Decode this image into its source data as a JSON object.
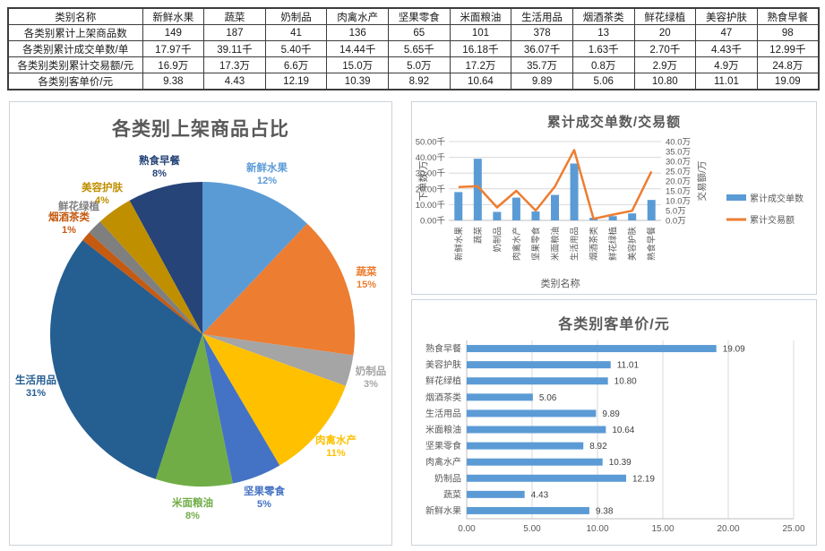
{
  "colors": {
    "grid": "#D9D9D9",
    "axis": "#BFBFBF",
    "tick_text": "#595959",
    "value_text": "#404040",
    "bar_blue": "#5B9BD5",
    "line_orange": "#ED7D31"
  },
  "table": {
    "header": [
      "类别名称",
      "新鲜水果",
      "蔬菜",
      "奶制品",
      "肉禽水产",
      "坚果零食",
      "米面粮油",
      "生活用品",
      "烟酒茶类",
      "鲜花绿植",
      "美容护肤",
      "熟食早餐"
    ],
    "rows": [
      {
        "label": "各类别累计上架商品数",
        "values": [
          "149",
          "187",
          "41",
          "136",
          "65",
          "101",
          "378",
          "13",
          "20",
          "47",
          "98"
        ]
      },
      {
        "label": "各类别累计成交单数/单",
        "values": [
          "17.97千",
          "39.11千",
          "5.40千",
          "14.44千",
          "5.65千",
          "16.18千",
          "36.07千",
          "1.63千",
          "2.70千",
          "4.43千",
          "12.99千"
        ]
      },
      {
        "label": "各类别类别累计交易额/元",
        "values": [
          "16.9万",
          "17.3万",
          "6.6万",
          "15.0万",
          "5.0万",
          "17.2万",
          "35.7万",
          "0.8万",
          "2.9万",
          "4.9万",
          "24.8万"
        ]
      },
      {
        "label": "各类别客单价/元",
        "values": [
          "9.38",
          "4.43",
          "12.19",
          "10.39",
          "8.92",
          "10.64",
          "9.89",
          "5.06",
          "10.80",
          "11.01",
          "19.09"
        ]
      }
    ]
  },
  "chart_data": [
    {
      "type": "pie",
      "title": "各类别上架商品占比",
      "categories": [
        "新鲜水果",
        "蔬菜",
        "奶制品",
        "肉禽水产",
        "坚果零食",
        "米面粮油",
        "生活用品",
        "烟酒茶类",
        "鲜花绿植",
        "美容护肤",
        "熟食早餐"
      ],
      "values": [
        149,
        187,
        41,
        136,
        65,
        101,
        378,
        13,
        20,
        47,
        98
      ],
      "pct_labels": [
        "12%",
        "15%",
        "3%",
        "11%",
        "5%",
        "8%",
        "31%",
        "1%",
        "",
        "4%",
        "8%"
      ],
      "slice_colors": [
        "#5B9BD5",
        "#ED7D31",
        "#A5A5A5",
        "#FFC000",
        "#4472C4",
        "#70AD47",
        "#255E91",
        "#C55A11",
        "#7F7F7F",
        "#BF8F00",
        "#264478"
      ],
      "legend_position": "none"
    },
    {
      "type": "combo-bar-line",
      "title": "累计成交单数/交易额",
      "categories": [
        "新鲜水果",
        "蔬菜",
        "奶制品",
        "肉禽水产",
        "坚果零食",
        "米面粮油",
        "生活用品",
        "烟酒茶类",
        "鲜花绿植",
        "美容护肤",
        "熟食早餐"
      ],
      "series": [
        {
          "name": "累计成交单数",
          "type": "bar",
          "color": "#5B9BD5",
          "axis": "left",
          "values": [
            17.97,
            39.11,
            5.4,
            14.44,
            5.65,
            16.18,
            36.07,
            1.63,
            2.7,
            4.43,
            12.99
          ]
        },
        {
          "name": "累计交易额",
          "type": "line",
          "color": "#ED7D31",
          "axis": "right",
          "values": [
            16.9,
            17.3,
            6.6,
            15.0,
            5.0,
            17.2,
            35.7,
            0.8,
            2.9,
            4.9,
            24.8
          ]
        }
      ],
      "y_left": {
        "title": "下单数/万",
        "ticks": [
          "0.00千",
          "10.00千",
          "20.00千",
          "30.00千",
          "40.00千",
          "50.00千"
        ],
        "max": 50
      },
      "y_right": {
        "title": "交易额/万",
        "ticks": [
          "0.0万",
          "5.0万",
          "10.0万",
          "15.0万",
          "20.0万",
          "25.0万",
          "30.0万",
          "35.0万",
          "40.0万"
        ],
        "max": 40
      },
      "x_title": "类别名称",
      "grid": true,
      "legend_position": "right"
    },
    {
      "type": "barh",
      "title": "各类别客单价/元",
      "categories": [
        "熟食早餐",
        "美容护肤",
        "鲜花绿植",
        "烟酒茶类",
        "生活用品",
        "米面粮油",
        "坚果零食",
        "肉禽水产",
        "奶制品",
        "蔬菜",
        "新鲜水果"
      ],
      "values": [
        19.09,
        11.01,
        10.8,
        5.06,
        9.89,
        10.64,
        8.92,
        10.39,
        12.19,
        4.43,
        9.38
      ],
      "value_labels": [
        "19.09",
        "11.01",
        "10.80",
        "5.06",
        "9.89",
        "10.64",
        "8.92",
        "10.39",
        "12.19",
        "4.43",
        "9.38"
      ],
      "x_ticks": [
        "0.00",
        "5.00",
        "10.00",
        "15.00",
        "20.00",
        "25.00"
      ],
      "xlim": [
        0,
        25
      ],
      "bar_color": "#5B9BD5",
      "grid": true
    }
  ]
}
